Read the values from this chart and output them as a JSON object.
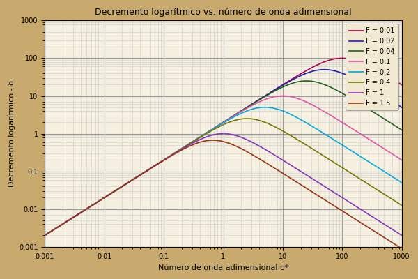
{
  "title": "Decremento logarítmico vs. número de onda adimensional",
  "xlabel": "Número de onda adimensional σ*",
  "ylabel": "Decremento logarítmico - δ",
  "xlim_log": [
    -3,
    3
  ],
  "ylim_log": [
    -3,
    3
  ],
  "background_color": "#c8a96e",
  "plot_bg_color": "#f5f0e0",
  "grid_major_color": "#999999",
  "grid_minor_color": "#cccccc",
  "series": [
    {
      "F": 0.01,
      "color": "#aa0055",
      "label": "F = 0.01"
    },
    {
      "F": 0.02,
      "color": "#2020aa",
      "label": "F = 0.02"
    },
    {
      "F": 0.04,
      "color": "#206020",
      "label": "F = 0.04"
    },
    {
      "F": 0.1,
      "color": "#dd55aa",
      "label": "F = 0.1"
    },
    {
      "F": 0.2,
      "color": "#00aadd",
      "label": "F = 0.2"
    },
    {
      "F": 0.4,
      "color": "#777700",
      "label": "F = 0.4"
    },
    {
      "F": 1.0,
      "color": "#8833bb",
      "label": "F = 1"
    },
    {
      "F": 1.5,
      "color": "#993311",
      "label": "F = 1.5"
    }
  ],
  "figsize": [
    6.0,
    4.0
  ],
  "dpi": 100
}
